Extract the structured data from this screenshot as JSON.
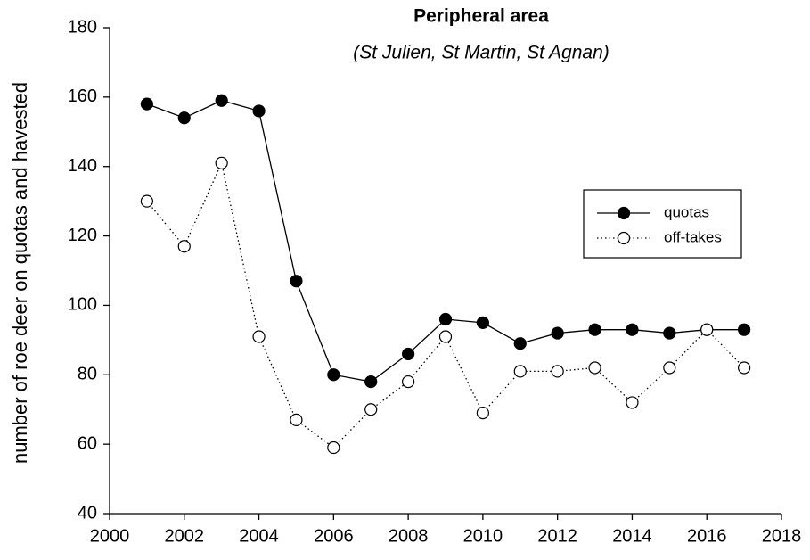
{
  "chart_data": {
    "type": "line",
    "title": "Peripheral area",
    "subtitle": "(St Julien, St Martin, St Agnan)",
    "y_label": "number of roe deer on quotas and havested",
    "x": [
      2001,
      2002,
      2003,
      2004,
      2005,
      2006,
      2007,
      2008,
      2009,
      2010,
      2011,
      2012,
      2013,
      2014,
      2015,
      2016,
      2017
    ],
    "series": [
      {
        "name": "quotas",
        "color": "#000000",
        "marker_fill": "#000000",
        "line_style": "solid",
        "values": [
          158,
          154,
          159,
          156,
          107,
          80,
          78,
          86,
          96,
          95,
          89,
          92,
          93,
          93,
          92,
          93,
          93
        ]
      },
      {
        "name": "off-takes",
        "color": "#000000",
        "marker_fill": "#ffffff",
        "line_style": "dotted",
        "values": [
          130,
          117,
          141,
          91,
          67,
          59,
          70,
          78,
          91,
          69,
          81,
          81,
          82,
          72,
          82,
          93,
          82
        ]
      }
    ],
    "xlim": [
      2000,
      2018
    ],
    "xticks": [
      2000,
      2002,
      2004,
      2006,
      2008,
      2010,
      2012,
      2014,
      2016,
      2018
    ],
    "ylim": [
      40,
      180
    ],
    "yticks": [
      40,
      60,
      80,
      100,
      120,
      140,
      160,
      180
    ],
    "grid": false,
    "legend": "center right"
  }
}
